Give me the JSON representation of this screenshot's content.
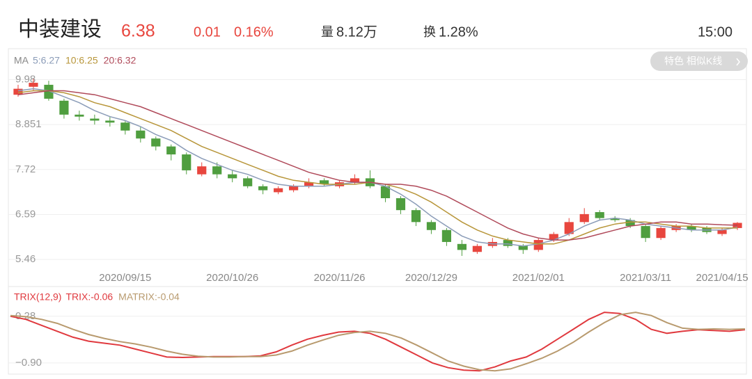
{
  "header": {
    "name": "中装建设",
    "price": "6.38",
    "change": "0.01",
    "change_pct": "0.16%",
    "volume_label": "量",
    "volume": "8.12万",
    "turnover_label": "换",
    "turnover": "1.28%",
    "time": "15:00",
    "button": "特色 相似K线"
  },
  "chart_data": [
    {
      "type": "candlestick",
      "legend_label": "MA",
      "series": [
        {
          "name": "5:6.27",
          "color": "#8b9cb8",
          "values": [
            9.7,
            9.75,
            9.7,
            9.55,
            9.4,
            9.2,
            9.05,
            8.95,
            8.8,
            8.6,
            8.45,
            8.2,
            8.0,
            7.85,
            7.7,
            7.6,
            7.45,
            7.35,
            7.3,
            7.3,
            7.3,
            7.35,
            7.4,
            7.4,
            7.3,
            7.1,
            6.85,
            6.55,
            6.3,
            6.05,
            5.9,
            5.85,
            5.85,
            5.8,
            5.85,
            5.95,
            6.1,
            6.3,
            6.45,
            6.5,
            6.45,
            6.35,
            6.3,
            6.25,
            6.2,
            6.2,
            6.2,
            6.27
          ]
        },
        {
          "name": "10:6.25",
          "color": "#b8963a",
          "values": [
            9.65,
            9.7,
            9.7,
            9.65,
            9.55,
            9.4,
            9.3,
            9.15,
            9.0,
            8.85,
            8.7,
            8.5,
            8.3,
            8.15,
            8.0,
            7.85,
            7.7,
            7.55,
            7.45,
            7.4,
            7.35,
            7.35,
            7.35,
            7.4,
            7.35,
            7.25,
            7.1,
            6.9,
            6.65,
            6.4,
            6.2,
            6.05,
            5.95,
            5.9,
            5.85,
            5.85,
            5.95,
            6.1,
            6.25,
            6.35,
            6.4,
            6.4,
            6.35,
            6.3,
            6.3,
            6.25,
            6.25,
            6.25
          ]
        },
        {
          "name": "20:6.32",
          "color": "#b04a5a",
          "values": [
            9.6,
            9.65,
            9.7,
            9.7,
            9.65,
            9.6,
            9.5,
            9.4,
            9.3,
            9.15,
            9.0,
            8.85,
            8.7,
            8.55,
            8.4,
            8.25,
            8.1,
            7.95,
            7.8,
            7.65,
            7.55,
            7.45,
            7.4,
            7.4,
            7.35,
            7.35,
            7.3,
            7.2,
            7.05,
            6.85,
            6.65,
            6.45,
            6.25,
            6.1,
            6.0,
            5.95,
            5.95,
            6.0,
            6.1,
            6.2,
            6.3,
            6.35,
            6.4,
            6.4,
            6.35,
            6.35,
            6.33,
            6.32
          ]
        }
      ],
      "open": [
        9.6,
        9.8,
        9.85,
        9.45,
        9.1,
        9.0,
        8.95,
        8.9,
        8.7,
        8.5,
        8.3,
        8.1,
        7.6,
        7.8,
        7.6,
        7.5,
        7.3,
        7.15,
        7.2,
        7.3,
        7.45,
        7.3,
        7.4,
        7.5,
        7.3,
        7.0,
        6.7,
        6.4,
        6.2,
        5.85,
        5.65,
        5.8,
        5.95,
        5.8,
        5.7,
        5.95,
        6.1,
        6.4,
        6.65,
        6.5,
        6.45,
        6.3,
        6.0,
        6.2,
        6.3,
        6.25,
        6.1,
        6.25
      ],
      "high": [
        9.85,
        10.0,
        9.95,
        9.5,
        9.2,
        9.1,
        9.05,
        8.95,
        8.8,
        8.55,
        8.35,
        8.15,
        7.9,
        7.9,
        7.7,
        7.55,
        7.35,
        7.3,
        7.35,
        7.5,
        7.5,
        7.45,
        7.6,
        7.7,
        7.35,
        7.05,
        6.75,
        6.45,
        6.25,
        5.95,
        5.85,
        6.0,
        6.0,
        5.85,
        6.0,
        6.15,
        6.5,
        6.75,
        6.7,
        6.55,
        6.5,
        6.35,
        6.3,
        6.35,
        6.35,
        6.3,
        6.25,
        6.4
      ],
      "low": [
        9.55,
        9.7,
        9.45,
        9.0,
        8.95,
        8.85,
        8.8,
        8.6,
        8.4,
        8.2,
        7.95,
        7.6,
        7.55,
        7.5,
        7.4,
        7.25,
        7.1,
        7.1,
        7.15,
        7.25,
        7.3,
        7.25,
        7.35,
        7.25,
        6.9,
        6.6,
        6.3,
        6.1,
        5.8,
        5.55,
        5.6,
        5.75,
        5.75,
        5.6,
        5.65,
        5.9,
        6.05,
        6.35,
        6.45,
        6.4,
        6.25,
        5.9,
        5.95,
        6.15,
        6.15,
        6.1,
        6.05,
        6.2
      ],
      "close": [
        9.75,
        9.9,
        9.5,
        9.1,
        9.05,
        8.95,
        8.9,
        8.7,
        8.5,
        8.3,
        8.1,
        7.7,
        7.8,
        7.6,
        7.5,
        7.3,
        7.2,
        7.25,
        7.3,
        7.4,
        7.35,
        7.4,
        7.5,
        7.3,
        7.0,
        6.7,
        6.4,
        6.2,
        5.9,
        5.7,
        5.8,
        5.9,
        5.8,
        5.7,
        5.95,
        6.1,
        6.4,
        6.6,
        6.5,
        6.45,
        6.3,
        6.0,
        6.25,
        6.3,
        6.2,
        6.15,
        6.2,
        6.38
      ],
      "up_color": "#e8463e",
      "down_color": "#4f9e3f",
      "xticks": [
        {
          "value": 7,
          "label": "2020/09/15"
        },
        {
          "value": 14,
          "label": "2020/10/26"
        },
        {
          "value": 21,
          "label": "2020/11/26"
        },
        {
          "value": 27,
          "label": "2020/12/29"
        },
        {
          "value": 34,
          "label": "2021/02/01"
        },
        {
          "value": 41,
          "label": "2021/03/11"
        },
        {
          "value": 46,
          "label": "2021/04/15"
        }
      ],
      "ylim": [
        5.2,
        10.67
      ],
      "yticks": [
        9.98,
        8.851,
        7.72,
        6.59,
        5.46
      ],
      "grid": true
    },
    {
      "type": "line",
      "legend_label": "TRIX(12,9)",
      "series": [
        {
          "name": "TRIX:-0.06",
          "color": "#e0393e",
          "values": [
            0.28,
            0.2,
            0.05,
            -0.1,
            -0.25,
            -0.35,
            -0.4,
            -0.45,
            -0.55,
            -0.65,
            -0.75,
            -0.76,
            -0.75,
            -0.74,
            -0.74,
            -0.74,
            -0.72,
            -0.62,
            -0.45,
            -0.3,
            -0.2,
            -0.12,
            -0.1,
            -0.15,
            -0.3,
            -0.5,
            -0.7,
            -0.9,
            -1.02,
            -1.08,
            -1.1,
            -1.0,
            -0.85,
            -0.75,
            -0.55,
            -0.3,
            -0.05,
            0.2,
            0.38,
            0.35,
            0.2,
            -0.05,
            -0.15,
            -0.1,
            -0.06,
            -0.08,
            -0.1,
            -0.06
          ]
        },
        {
          "name": "MATRIX:-0.04",
          "color": "#b89a6e",
          "values": [
            0.3,
            0.27,
            0.2,
            0.1,
            -0.05,
            -0.18,
            -0.28,
            -0.36,
            -0.42,
            -0.5,
            -0.6,
            -0.68,
            -0.73,
            -0.75,
            -0.75,
            -0.74,
            -0.74,
            -0.7,
            -0.6,
            -0.45,
            -0.32,
            -0.2,
            -0.13,
            -0.1,
            -0.15,
            -0.27,
            -0.45,
            -0.65,
            -0.85,
            -0.98,
            -1.07,
            -1.1,
            -1.05,
            -0.92,
            -0.78,
            -0.6,
            -0.38,
            -0.12,
            0.12,
            0.32,
            0.38,
            0.3,
            0.12,
            -0.02,
            -0.05,
            -0.04,
            -0.05,
            -0.04
          ]
        }
      ],
      "ylim": [
        -1.13,
        0.54
      ],
      "yticks": [
        0.28,
        {
          "value": -0.9,
          "label": "−0.90"
        }
      ],
      "grid": true
    }
  ]
}
